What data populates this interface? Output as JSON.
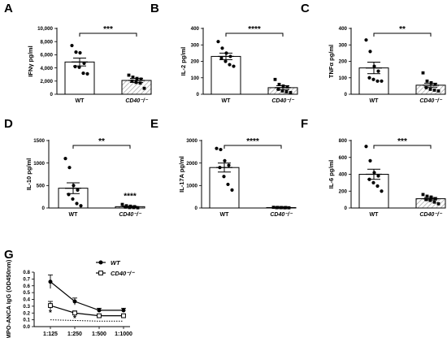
{
  "chart_data": [
    {
      "panel": "A",
      "type": "bar",
      "ylabel": "IFNγ pg/ml",
      "ylim": [
        0,
        10000
      ],
      "yticks": [
        "0",
        "2,000",
        "4,000",
        "6,000",
        "8,000",
        "10,000"
      ],
      "ytick_values": [
        0,
        2000,
        4000,
        6000,
        8000,
        10000
      ],
      "categories": [
        "WT",
        "CD40⁻/⁻"
      ],
      "values": [
        4900,
        2100
      ],
      "sem": [
        600,
        300
      ],
      "points": [
        [
          7400,
          6400,
          6300,
          4700,
          4200,
          4100,
          3200,
          3100
        ],
        [
          2900,
          2600,
          2400,
          2300,
          2000,
          1800,
          1700,
          900
        ]
      ],
      "significance": "***"
    },
    {
      "panel": "B",
      "type": "bar",
      "ylabel": "IL-2 pg/ml",
      "ylim": [
        0,
        400
      ],
      "yticks": [
        "0",
        "100",
        "200",
        "300",
        "400"
      ],
      "ytick_values": [
        0,
        100,
        200,
        300,
        400
      ],
      "categories": [
        "WT",
        "CD40⁻/⁻"
      ],
      "values": [
        230,
        40
      ],
      "sem": [
        20,
        12
      ],
      "points": [
        [
          320,
          280,
          250,
          230,
          220,
          200,
          180,
          170
        ],
        [
          90,
          60,
          50,
          45,
          30,
          20,
          15,
          10
        ]
      ],
      "significance": "****"
    },
    {
      "panel": "C",
      "type": "bar",
      "ylabel": "TNFα pg/ml",
      "ylim": [
        0,
        400
      ],
      "yticks": [
        "0",
        "100",
        "200",
        "300",
        "400"
      ],
      "ytick_values": [
        0,
        100,
        200,
        300,
        400
      ],
      "categories": [
        "WT",
        "CD40⁻/⁻"
      ],
      "values": [
        160,
        55
      ],
      "sem": [
        35,
        12
      ],
      "points": [
        [
          330,
          260,
          170,
          140,
          100,
          90,
          80,
          80
        ],
        [
          130,
          80,
          70,
          60,
          40,
          30,
          25,
          20
        ]
      ],
      "significance": "**"
    },
    {
      "panel": "D",
      "type": "bar",
      "ylabel": "IL-10 pg/ml",
      "ylim": [
        0,
        1500
      ],
      "yticks": [
        "0",
        "500",
        "1000",
        "1500"
      ],
      "ytick_values": [
        0,
        500,
        1000,
        1500
      ],
      "categories": [
        "WT",
        "CD40⁻/⁻"
      ],
      "values": [
        440,
        30
      ],
      "sem": [
        120,
        10
      ],
      "points": [
        [
          1100,
          900,
          500,
          400,
          300,
          200,
          100,
          50
        ],
        [
          80,
          50,
          40,
          30,
          20,
          10,
          10,
          5
        ]
      ],
      "significance": "**",
      "extra_significance": "****"
    },
    {
      "panel": "E",
      "type": "bar",
      "ylabel": "IL-17A pg/ml",
      "ylim": [
        0,
        3000
      ],
      "yticks": [
        "0",
        "1000",
        "2000",
        "3000"
      ],
      "ytick_values": [
        0,
        1000,
        2000,
        3000
      ],
      "categories": [
        "WT",
        "CD40⁻/⁻"
      ],
      "values": [
        1800,
        20
      ],
      "sem": [
        200,
        5
      ],
      "points": [
        [
          2650,
          2600,
          2100,
          1900,
          1800,
          1400,
          1050,
          800
        ],
        [
          30,
          25,
          20,
          20,
          15,
          15,
          10,
          10
        ]
      ],
      "significance": "****"
    },
    {
      "panel": "F",
      "type": "bar",
      "ylabel": "IL-6 pg/ml",
      "ylim": [
        0,
        800
      ],
      "yticks": [
        "0",
        "200",
        "400",
        "600",
        "800"
      ],
      "ytick_values": [
        0,
        200,
        400,
        600,
        800
      ],
      "categories": [
        "WT",
        "CD40⁻/⁻"
      ],
      "values": [
        400,
        110
      ],
      "sem": [
        60,
        15
      ],
      "points": [
        [
          730,
          560,
          420,
          380,
          340,
          300,
          260,
          200
        ],
        [
          160,
          140,
          130,
          110,
          100,
          90,
          70,
          50
        ]
      ],
      "significance": "***"
    },
    {
      "panel": "G",
      "type": "line",
      "ylabel": "MPO-ANCA IgG (OD450nm)",
      "ylim": [
        0,
        0.8
      ],
      "yticks": [
        "0.0",
        "0.1",
        "0.2",
        "0.3",
        "0.4",
        "0.5",
        "0.6",
        "0.7",
        "0.8"
      ],
      "ytick_values": [
        0,
        0.1,
        0.2,
        0.3,
        0.4,
        0.5,
        0.6,
        0.7,
        0.8
      ],
      "categories": [
        "1:125",
        "1:250",
        "1:500",
        "1:1000"
      ],
      "series": [
        {
          "name": "WT",
          "values": [
            0.66,
            0.37,
            0.24,
            0.24
          ],
          "sem": [
            0.1,
            0.05,
            0.03,
            0.03
          ],
          "marker": "circle"
        },
        {
          "name": "CD40⁻/⁻",
          "values": [
            0.31,
            0.2,
            0.16,
            0.16
          ],
          "sem": [
            0.06,
            0.03,
            0.02,
            0.02
          ],
          "marker": "square"
        }
      ],
      "baseline": [
        0.1,
        0.09,
        0.08,
        0.08
      ],
      "significance_marks": [
        "*",
        "*",
        "",
        ""
      ]
    }
  ]
}
